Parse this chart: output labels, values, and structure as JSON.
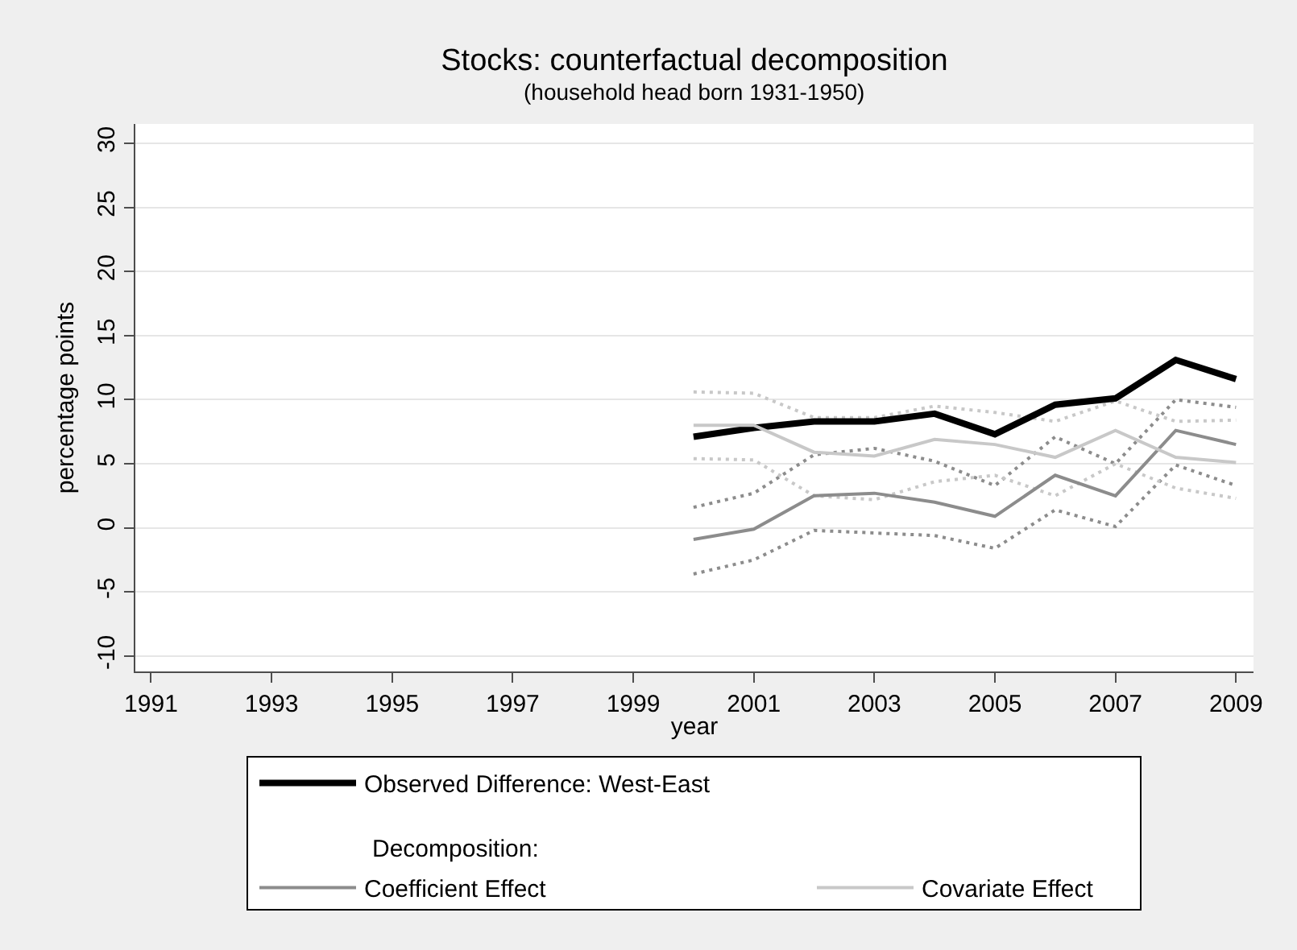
{
  "chart_data": {
    "type": "line",
    "title": "Stocks: counterfactual decomposition",
    "subtitle": "(household head born 1931-1950)",
    "xlabel": "year",
    "ylabel": "percentage points",
    "legend_title": "Decomposition:",
    "x": [
      2000,
      2001,
      2002,
      2003,
      2004,
      2005,
      2006,
      2007,
      2008,
      2009
    ],
    "series": [
      {
        "color": "#8c8c8c",
        "line_style": "dotted",
        "values": [
          1.6,
          2.7,
          5.7,
          6.2,
          5.2,
          3.3,
          7.1,
          5.0,
          10.0,
          9.4
        ]
      },
      {
        "color": "#8c8c8c",
        "line_style": "dotted",
        "values": [
          -3.6,
          -2.5,
          -0.2,
          -0.4,
          -0.6,
          -1.6,
          1.4,
          0.1,
          4.9,
          3.3
        ]
      },
      {
        "color": "#c8c8c8",
        "line_style": "dotted",
        "values": [
          10.6,
          10.5,
          8.6,
          8.6,
          9.5,
          9.0,
          8.3,
          9.9,
          8.3,
          8.4
        ]
      },
      {
        "color": "#c8c8c8",
        "line_style": "dotted",
        "values": [
          5.4,
          5.3,
          2.5,
          2.2,
          3.6,
          4.1,
          2.5,
          5.0,
          3.1,
          2.3
        ]
      },
      {
        "name": "Observed Difference: West-East",
        "color": "#000000",
        "line_style": "solid",
        "values": [
          7.1,
          7.8,
          8.3,
          8.3,
          8.9,
          7.3,
          9.6,
          10.1,
          13.1,
          11.6
        ]
      },
      {
        "name": "Coefficient Effect",
        "color": "#8c8c8c",
        "line_style": "solid",
        "values": [
          -0.9,
          -0.1,
          2.5,
          2.7,
          2.0,
          0.9,
          4.1,
          2.5,
          7.6,
          6.5
        ]
      },
      {
        "name": "Covariate Effect",
        "color": "#c8c8c8",
        "line_style": "solid",
        "values": [
          8.0,
          8.0,
          5.9,
          5.6,
          6.9,
          6.5,
          5.5,
          7.6,
          5.5,
          5.1
        ]
      }
    ],
    "xlim": [
      1990.74,
      2009.29
    ],
    "xticks": [
      1991,
      1993,
      1995,
      1997,
      1999,
      2001,
      2003,
      2005,
      2007,
      2009
    ],
    "ylim": [
      -11.2,
      31.5
    ],
    "yticks": [
      -10,
      -5,
      0,
      5,
      10,
      15,
      20,
      25,
      30
    ],
    "grid": "y",
    "legend": "bottom"
  }
}
